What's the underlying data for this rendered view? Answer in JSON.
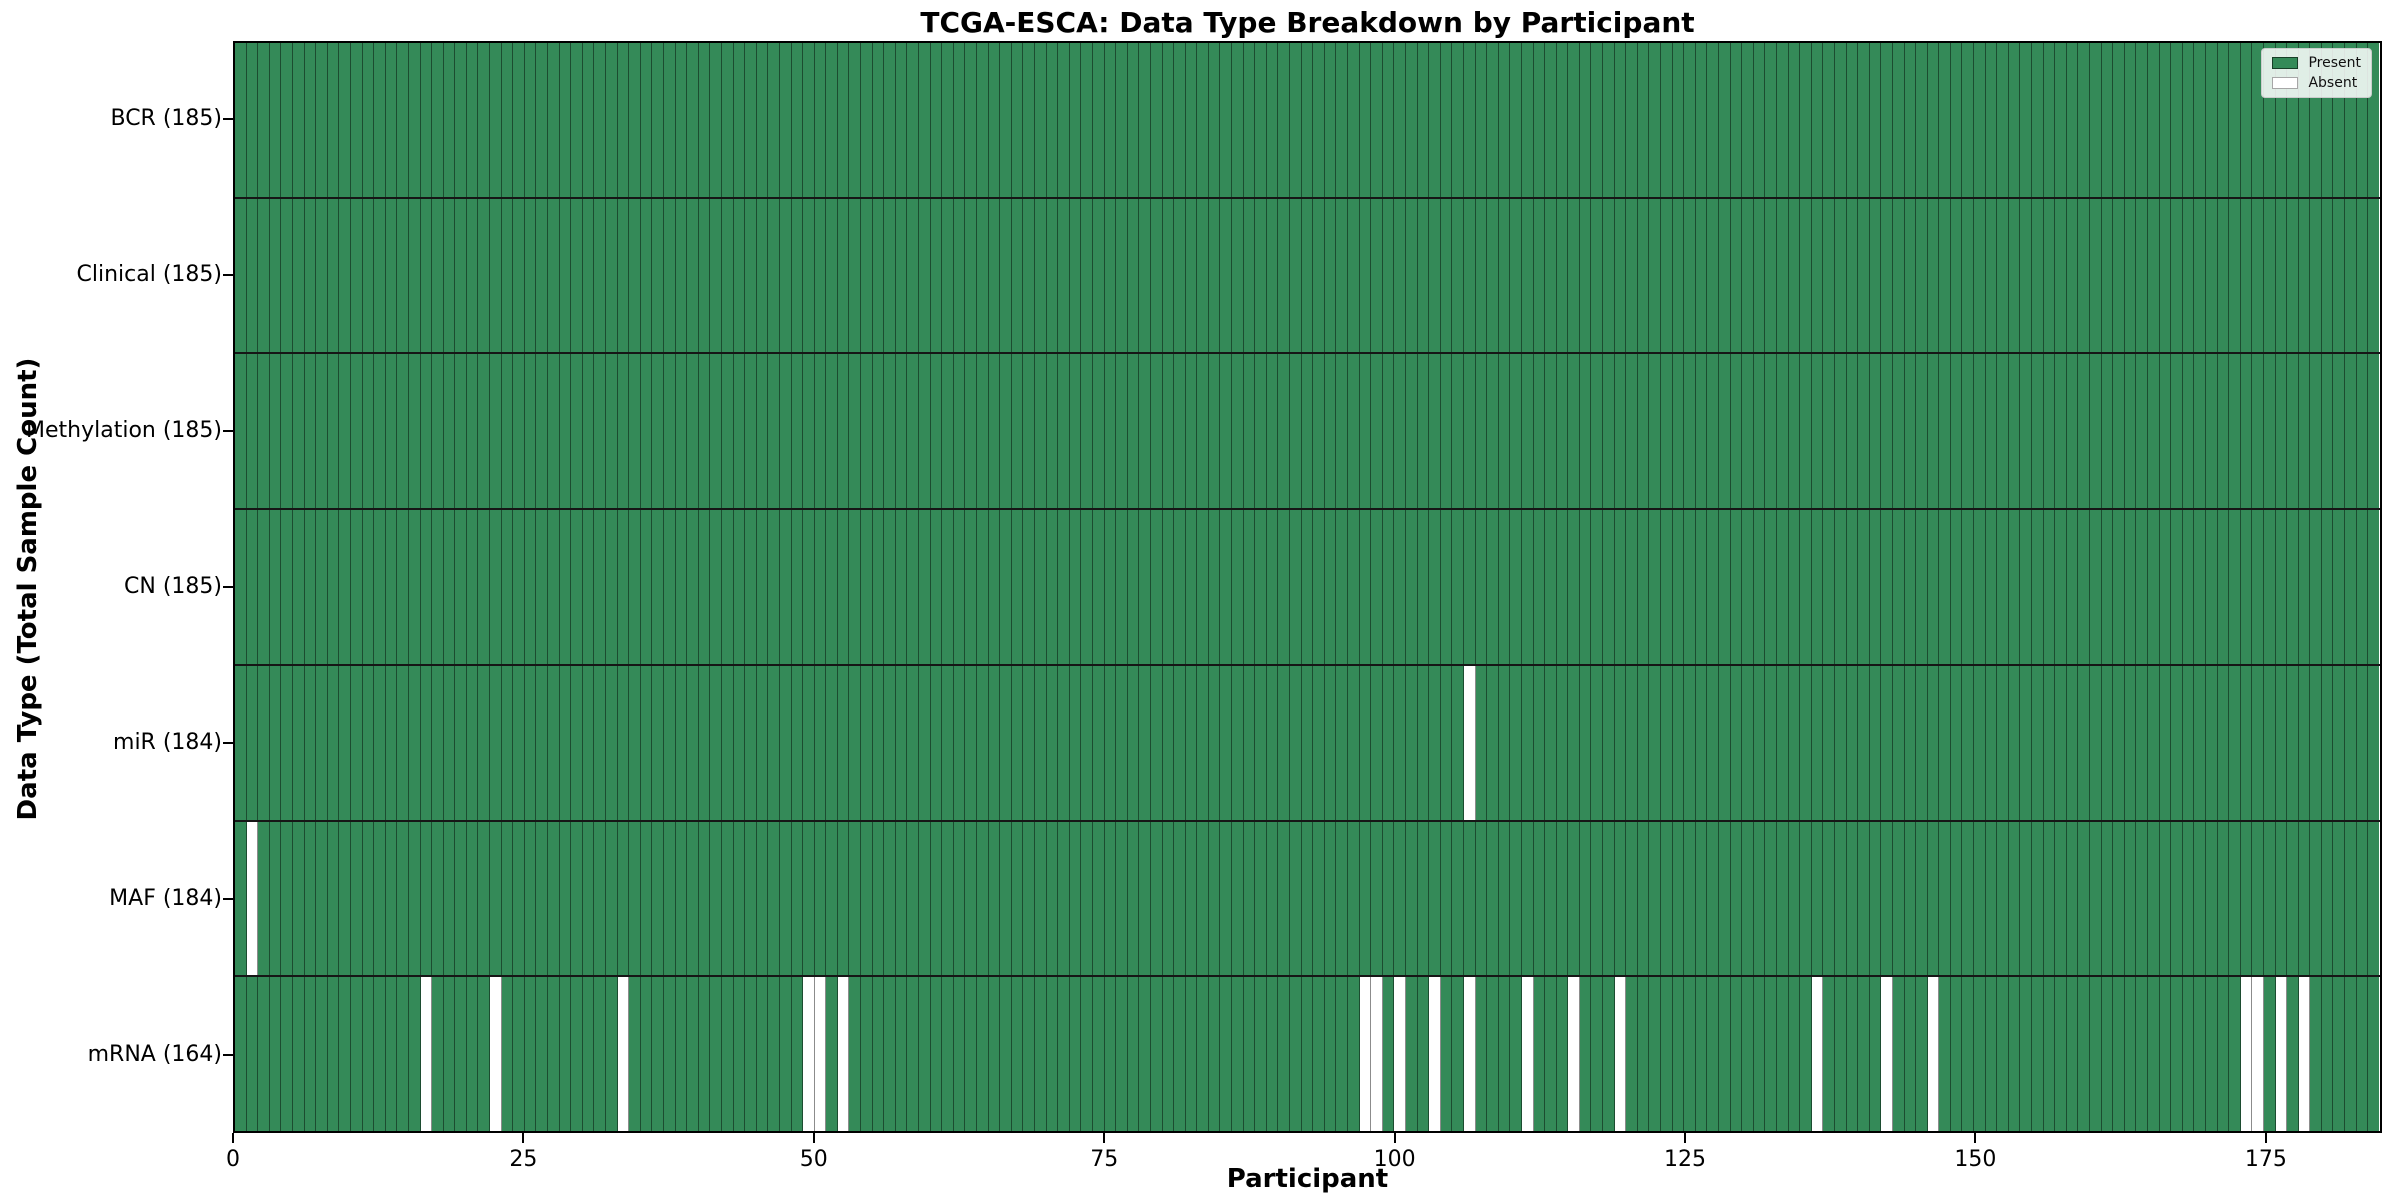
{
  "figure": {
    "title": "TCGA-ESCA: Data Type Breakdown by Participant",
    "x_axis_label": "Participant",
    "y_axis_label": "Data Type (Total Sample Count)"
  },
  "colors": {
    "present": "#348a58",
    "absent": "#ffffff",
    "cell_edge": "rgba(0,0,0,0.45)",
    "row_divider": "#161616",
    "spine": "#000000",
    "legend_bg": "rgba(255,255,255,0.85)",
    "legend_border": "#cccccc"
  },
  "legend": {
    "entries": [
      {
        "label": "Present",
        "swatch": "present"
      },
      {
        "label": "Absent",
        "swatch": "absent"
      }
    ]
  },
  "chart_data": {
    "type": "heatmap",
    "title": "TCGA-ESCA: Data Type Breakdown by Participant",
    "xlabel": "Participant",
    "ylabel": "Data Type (Total Sample Count)",
    "n_participants": 185,
    "x_range": [
      0,
      185
    ],
    "x_ticks": [
      0,
      25,
      50,
      75,
      100,
      125,
      150,
      175
    ],
    "x_tick_labels": [
      "0",
      "25",
      "50",
      "75",
      "100",
      "125",
      "150",
      "175"
    ],
    "grid": "cell-edges",
    "legend_position": "upper-right",
    "cell_states": {
      "present": 1,
      "absent": 0
    },
    "rows": [
      {
        "label": "BCR (185)",
        "data_type": "BCR",
        "present_count": 185,
        "absent_participants": []
      },
      {
        "label": "Clinical (185)",
        "data_type": "Clinical",
        "present_count": 185,
        "absent_participants": []
      },
      {
        "label": "Methylation (185)",
        "data_type": "Methylation",
        "present_count": 185,
        "absent_participants": []
      },
      {
        "label": "CN (185)",
        "data_type": "CN",
        "present_count": 185,
        "absent_participants": []
      },
      {
        "label": "miR (184)",
        "data_type": "miR",
        "present_count": 184,
        "absent_participants": [
          106
        ]
      },
      {
        "label": "MAF (184)",
        "data_type": "MAF",
        "present_count": 184,
        "absent_participants": [
          1
        ]
      },
      {
        "label": "mRNA (164)",
        "data_type": "mRNA",
        "present_count": 164,
        "absent_participants": [
          16,
          22,
          33,
          49,
          50,
          52,
          97,
          98,
          100,
          103,
          106,
          111,
          115,
          119,
          136,
          142,
          146,
          173,
          174,
          176,
          178
        ]
      }
    ]
  }
}
